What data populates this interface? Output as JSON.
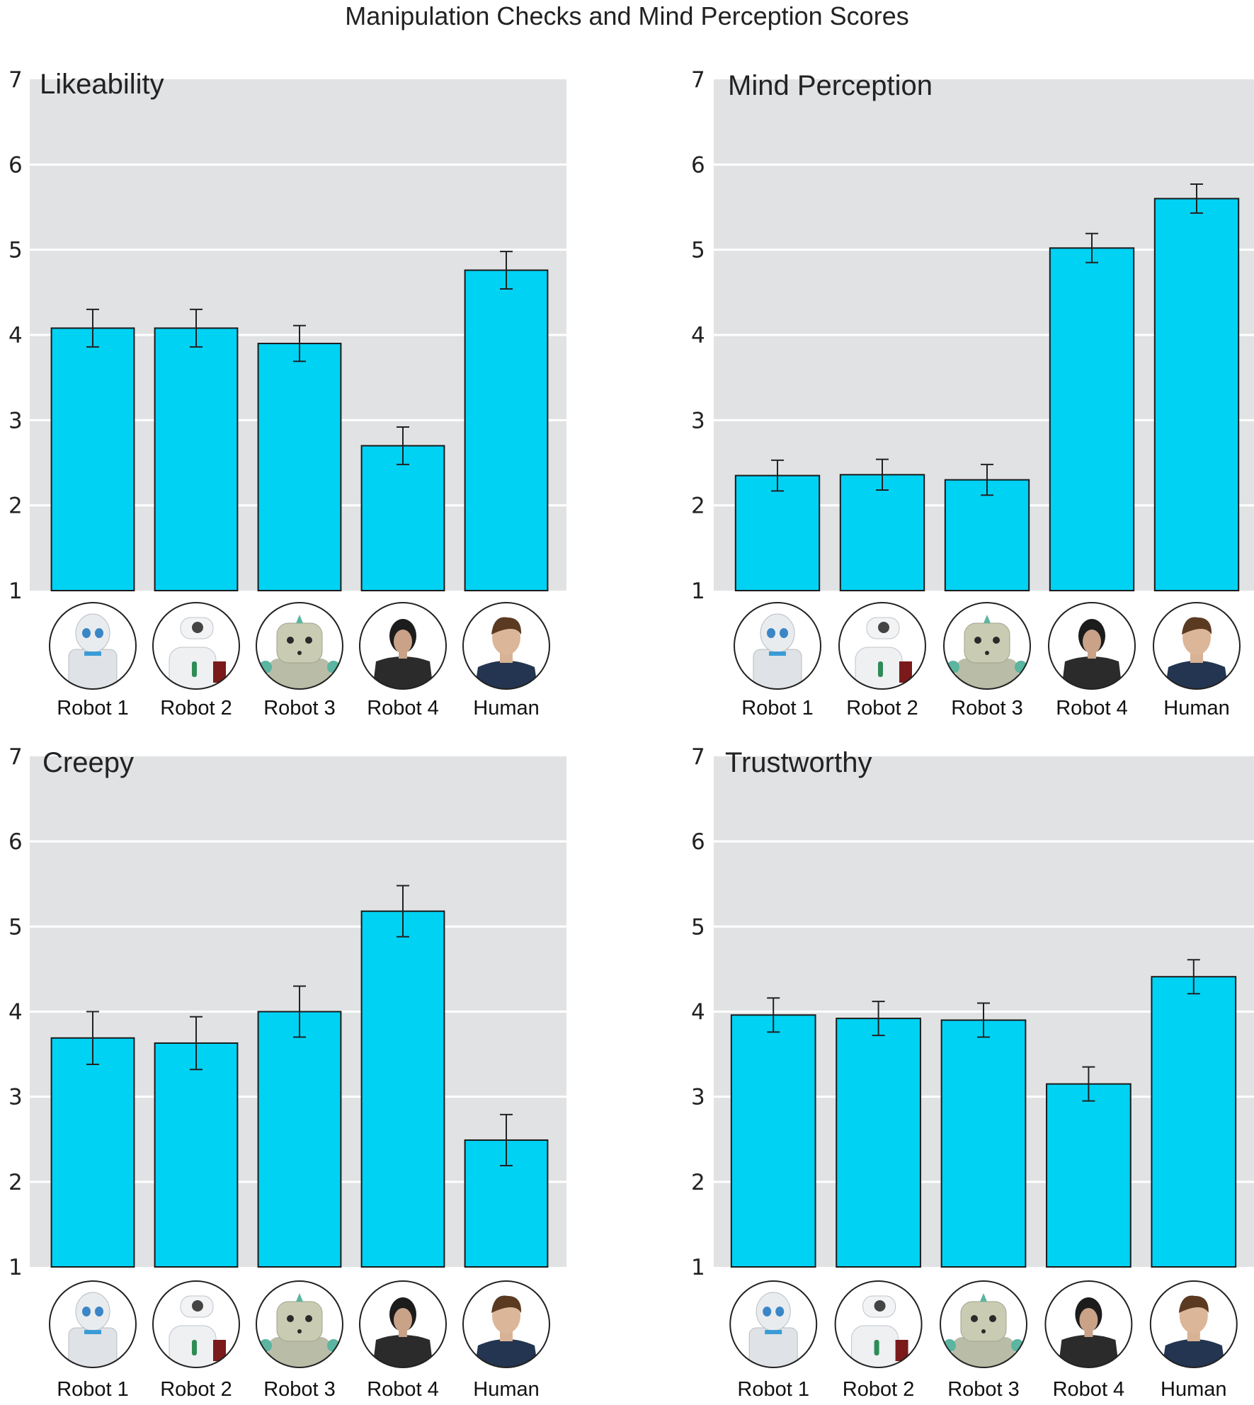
{
  "figure_title": "Manipulation Checks and Mind Perception Scores",
  "colors": {
    "bar_fill": "#00d2f4",
    "bar_stroke": "#1a1a1a",
    "panel_bg": "#e1e2e4",
    "grid": "#ffffff",
    "error_bar": "#222222"
  },
  "chart_data": [
    {
      "type": "bar",
      "title": "Likeability",
      "categories": [
        "Robot 1",
        "Robot 2",
        "Robot 3",
        "Robot 4",
        "Human"
      ],
      "category_icons": [
        "robot-1-photo-icon",
        "robot-2-photo-icon",
        "robot-3-photo-icon",
        "robot-4-photo-icon",
        "human-photo-icon"
      ],
      "values": [
        4.08,
        4.08,
        3.9,
        2.7,
        4.76
      ],
      "error": [
        0.22,
        0.22,
        0.21,
        0.22,
        0.22
      ],
      "ylim": [
        1,
        7
      ],
      "yticks": [
        "1",
        "2",
        "3",
        "4",
        "5",
        "6",
        "7"
      ],
      "xlabel": "",
      "ylabel": "",
      "grid": true
    },
    {
      "type": "bar",
      "title": "Mind Perception",
      "categories": [
        "Robot 1",
        "Robot 2",
        "Robot 3",
        "Robot 4",
        "Human"
      ],
      "category_icons": [
        "robot-1-photo-icon",
        "robot-2-photo-icon",
        "robot-3-photo-icon",
        "robot-4-photo-icon",
        "human-photo-icon"
      ],
      "values": [
        2.35,
        2.36,
        2.3,
        5.02,
        5.6
      ],
      "error": [
        0.18,
        0.18,
        0.18,
        0.17,
        0.17
      ],
      "ylim": [
        1,
        7
      ],
      "yticks": [
        "1",
        "2",
        "3",
        "4",
        "5",
        "6",
        "7"
      ],
      "xlabel": "",
      "ylabel": "",
      "grid": true
    },
    {
      "type": "bar",
      "title": "Creepy",
      "categories": [
        "Robot 1",
        "Robot 2",
        "Robot 3",
        "Robot 4",
        "Human"
      ],
      "category_icons": [
        "robot-1-photo-icon",
        "robot-2-photo-icon",
        "robot-3-photo-icon",
        "robot-4-photo-icon",
        "human-photo-icon"
      ],
      "values": [
        3.69,
        3.63,
        4.0,
        5.18,
        2.49
      ],
      "error": [
        0.31,
        0.31,
        0.3,
        0.3,
        0.3
      ],
      "ylim": [
        1,
        7
      ],
      "yticks": [
        "1",
        "2",
        "3",
        "4",
        "5",
        "6",
        "7"
      ],
      "xlabel": "",
      "ylabel": "",
      "grid": true
    },
    {
      "type": "bar",
      "title": "Trustworthy",
      "categories": [
        "Robot 1",
        "Robot 2",
        "Robot 3",
        "Robot 4",
        "Human"
      ],
      "category_icons": [
        "robot-1-photo-icon",
        "robot-2-photo-icon",
        "robot-3-photo-icon",
        "robot-4-photo-icon",
        "human-photo-icon"
      ],
      "values": [
        3.96,
        3.92,
        3.9,
        3.15,
        4.41
      ],
      "error": [
        0.2,
        0.2,
        0.2,
        0.2,
        0.2
      ],
      "ylim": [
        1,
        7
      ],
      "yticks": [
        "1",
        "2",
        "3",
        "4",
        "5",
        "6",
        "7"
      ],
      "xlabel": "",
      "ylabel": "",
      "grid": true
    }
  ]
}
